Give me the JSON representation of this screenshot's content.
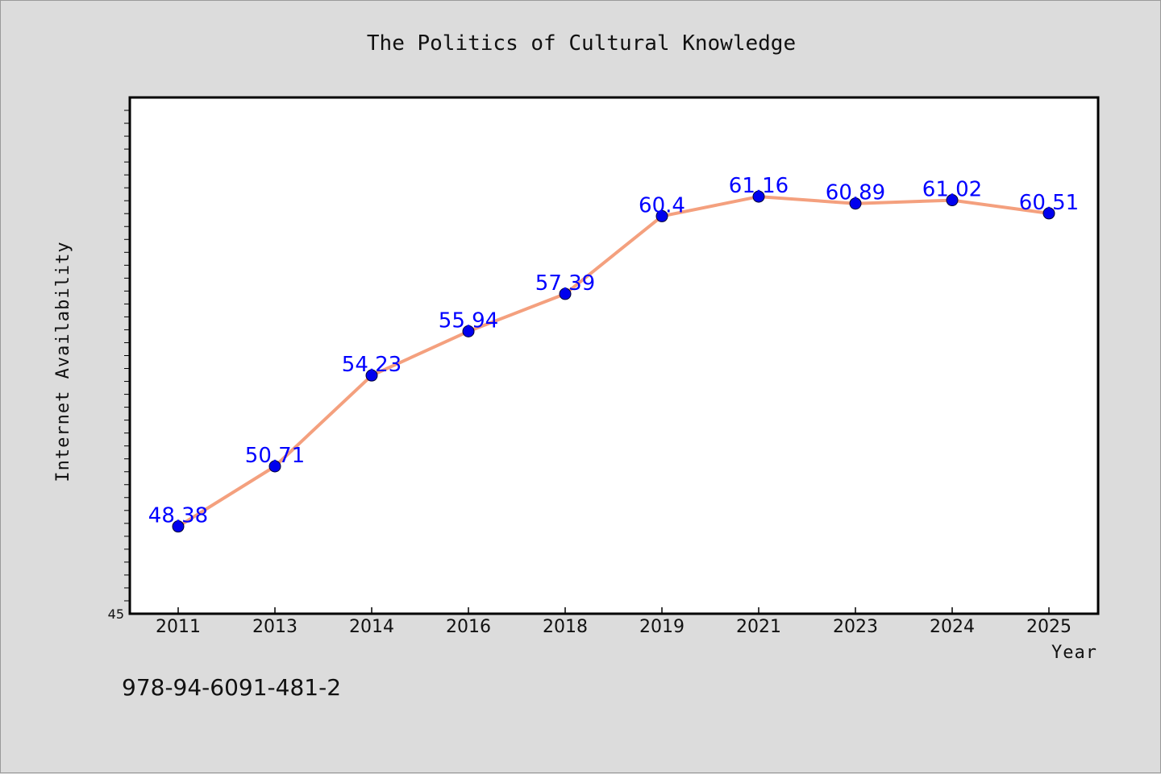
{
  "chart_data": {
    "type": "line",
    "title": "The Politics of Cultural Knowledge",
    "xlabel": "Year",
    "ylabel": "Internet Availability",
    "categories": [
      "2011",
      "2013",
      "2014",
      "2016",
      "2018",
      "2019",
      "2021",
      "2023",
      "2024",
      "2025"
    ],
    "series": [
      {
        "values": [
          48.38,
          50.71,
          54.23,
          55.94,
          57.39,
          60.4,
          61.16,
          60.89,
          61.02,
          60.51
        ],
        "labels": [
          "48.38",
          "50.71",
          "54.23",
          "55.94",
          "57.39",
          "60.4",
          "61.16",
          "60.89",
          "61.02",
          "60.51"
        ],
        "line_color": "#f4a07e",
        "marker_color": "#0000ee",
        "label_color": "#0000ff"
      }
    ],
    "yticks": [
      "45"
    ],
    "ylim": [
      45,
      65
    ],
    "grid": false,
    "legend": "none"
  },
  "footer": {
    "isbn": "978-94-6091-481-2"
  }
}
